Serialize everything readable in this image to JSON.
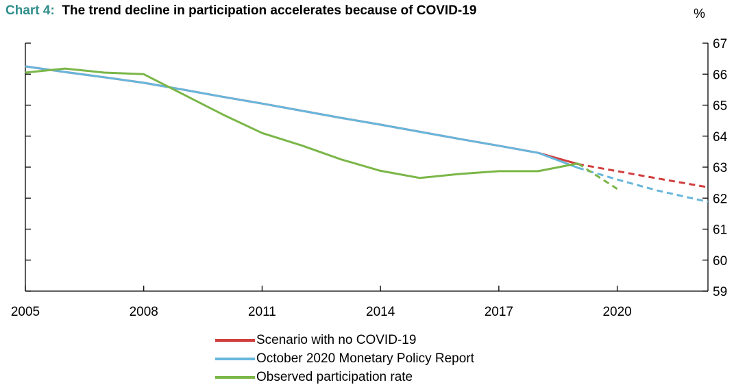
{
  "title_prefix": "Chart 4:",
  "title_text": "The trend decline in participation accelerates because of COVID-19",
  "unit_label": "%",
  "chart_data": {
    "type": "line",
    "title": "The trend decline in participation accelerates because of COVID-19",
    "xlabel": "",
    "ylabel": "%",
    "x_ticks": [
      "2005",
      "2008",
      "2011",
      "2014",
      "2017",
      "2020"
    ],
    "x_tick_values": [
      2005,
      2008,
      2011,
      2014,
      2017,
      2020
    ],
    "xlim": [
      2005,
      2022.3
    ],
    "ylim": [
      59,
      67
    ],
    "y_ticks": [
      59,
      60,
      61,
      62,
      63,
      64,
      65,
      66,
      67
    ],
    "y_axis_side": "right",
    "grid": false,
    "legend_position": "bottom",
    "series": [
      {
        "name": "Scenario with no COVID-19",
        "color": "#d13d3d",
        "segments": [
          {
            "style": "solid",
            "x": [
              2005,
              2006,
              2007,
              2008,
              2009,
              2010,
              2011,
              2012,
              2013,
              2014,
              2015,
              2016,
              2017,
              2018,
              2019
            ],
            "y": [
              66.25,
              66.07,
              65.9,
              65.72,
              65.5,
              65.27,
              65.05,
              64.82,
              64.59,
              64.37,
              64.14,
              63.91,
              63.69,
              63.46,
              63.1
            ]
          },
          {
            "style": "dashed",
            "x": [
              2019,
              2020,
              2021,
              2022.3
            ],
            "y": [
              63.1,
              62.87,
              62.64,
              62.35
            ]
          }
        ]
      },
      {
        "name": "October 2020 Monetary Policy Report",
        "color": "#66b6dc",
        "segments": [
          {
            "style": "solid",
            "x": [
              2005,
              2006,
              2007,
              2008,
              2009,
              2010,
              2011,
              2012,
              2013,
              2014,
              2015,
              2016,
              2017,
              2018,
              2019
            ],
            "y": [
              66.25,
              66.07,
              65.9,
              65.72,
              65.5,
              65.27,
              65.05,
              64.82,
              64.59,
              64.37,
              64.14,
              63.91,
              63.69,
              63.46,
              62.98
            ]
          },
          {
            "style": "dashed",
            "x": [
              2019,
              2020,
              2021,
              2022.3
            ],
            "y": [
              62.98,
              62.6,
              62.25,
              61.88
            ]
          }
        ]
      },
      {
        "name": "Observed participation rate",
        "color": "#7ab648",
        "segments": [
          {
            "style": "solid",
            "x": [
              2005,
              2006,
              2007,
              2008,
              2009,
              2010,
              2011,
              2012,
              2013,
              2014,
              2015,
              2016,
              2017,
              2018,
              2019
            ],
            "y": [
              66.05,
              66.18,
              66.05,
              66.0,
              65.35,
              64.7,
              64.1,
              63.7,
              63.25,
              62.88,
              62.65,
              62.78,
              62.87,
              62.87,
              63.12
            ]
          },
          {
            "style": "dashed",
            "x": [
              2019,
              2020
            ],
            "y": [
              63.12,
              62.3
            ]
          }
        ]
      }
    ]
  }
}
